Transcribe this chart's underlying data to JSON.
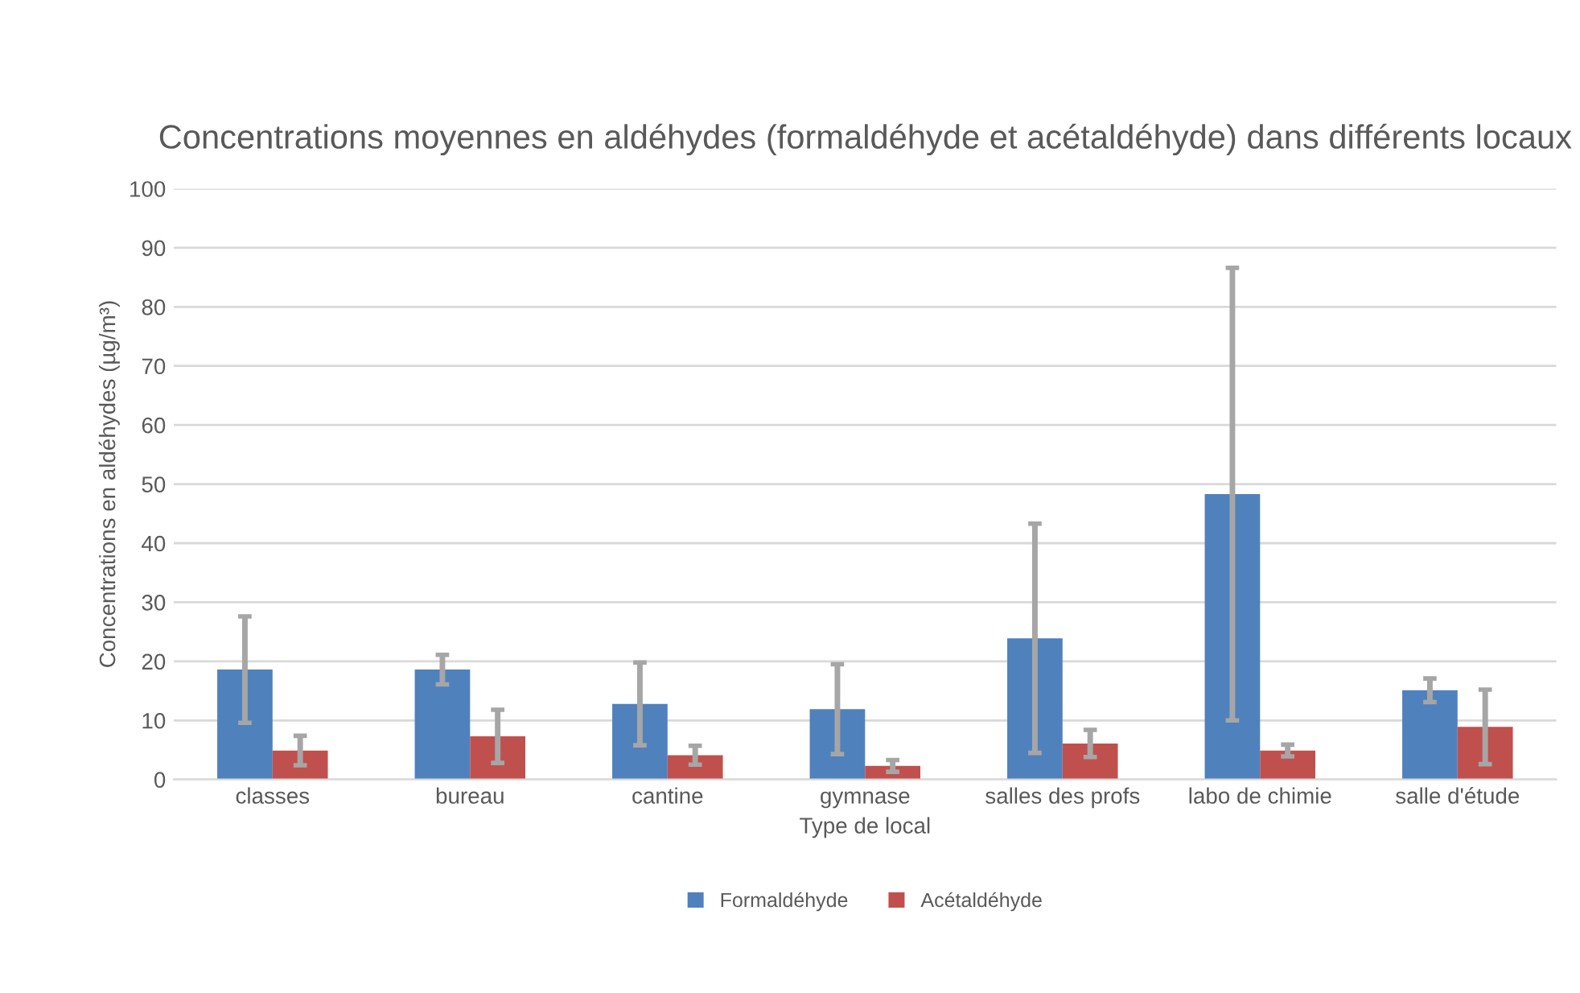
{
  "chart_data": {
    "type": "bar",
    "title": "Concentrations moyennes en aldéhydes (formaldéhyde et acétaldéhyde) dans différents locaux",
    "xlabel": "Type de local",
    "ylabel": "Concentrations en aldéhydes (µg/m³)",
    "categories": [
      "classes",
      "bureau",
      "cantine",
      "gymnase",
      "salles des profs",
      "labo de chimie",
      "salle d'étude"
    ],
    "series": [
      {
        "name": "Formaldéhyde",
        "color": "#4f81bd",
        "values": [
          18.6,
          18.6,
          12.8,
          11.9,
          23.9,
          48.3,
          15.1
        ],
        "errors": [
          9,
          2.5,
          7,
          7.6,
          19.4,
          38.3,
          2
        ]
      },
      {
        "name": "Acétaldéhyde",
        "color": "#c0504d",
        "values": [
          4.9,
          7.3,
          4.1,
          2.3,
          6.1,
          4.9,
          8.9
        ],
        "errors": [
          2.5,
          4.5,
          1.6,
          1,
          2.3,
          1,
          6.3
        ]
      }
    ],
    "ylim": [
      0,
      100
    ],
    "yticks": [
      0,
      10,
      20,
      30,
      40,
      50,
      60,
      70,
      80,
      90,
      100
    ],
    "grid": "y",
    "legend": "bottom"
  }
}
